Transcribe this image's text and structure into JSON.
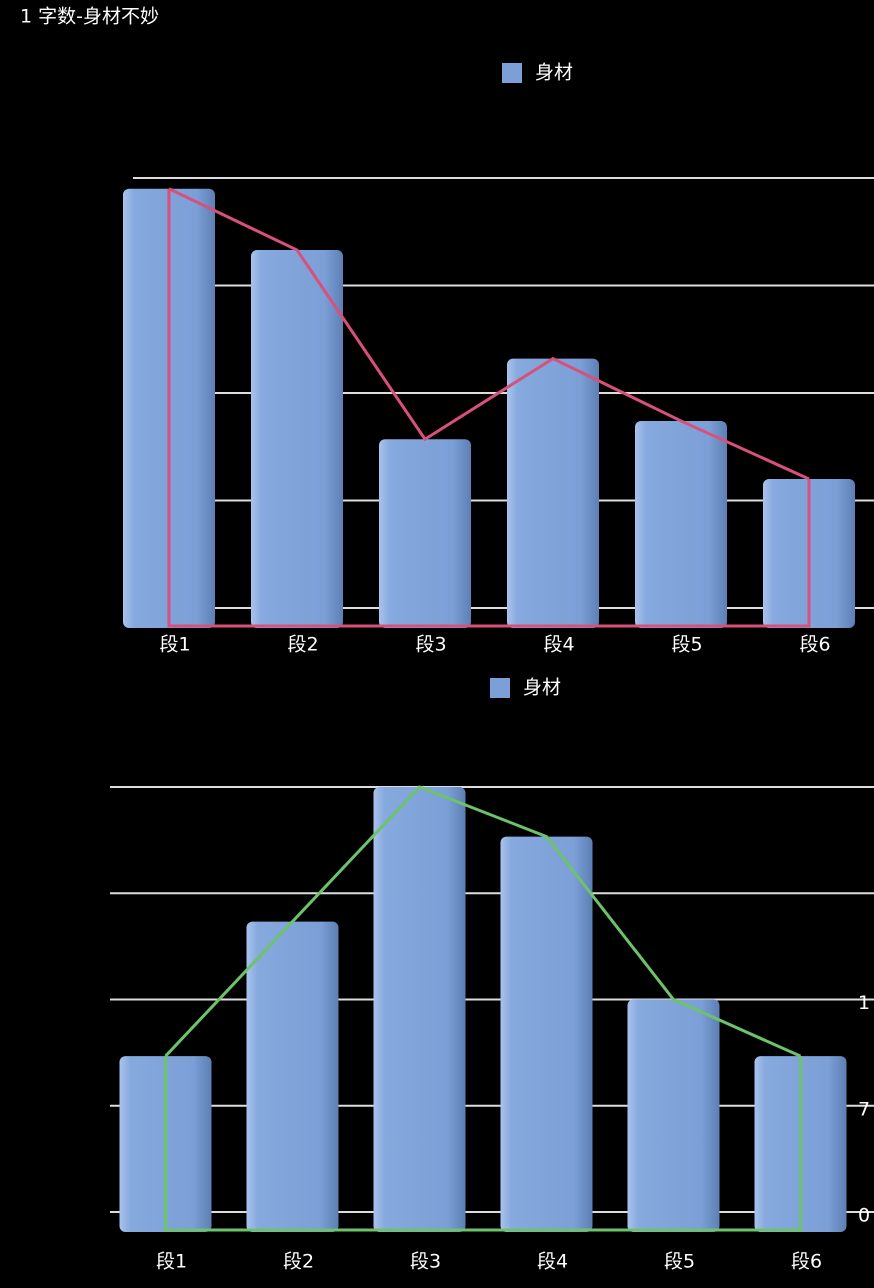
{
  "title": "1 字数-身材不妙",
  "chart_data": [
    {
      "type": "bar",
      "categories": [
        "段1",
        "段2",
        "段3",
        "段4",
        "段5",
        "段6"
      ],
      "series": [
        {
          "name": "身材",
          "color": "#7b9fd6",
          "values": [
            3.9,
            3.33,
            1.57,
            2.32,
            1.74,
            1.2
          ]
        }
      ],
      "ylim": [
        0,
        4
      ],
      "yticks": [
        {
          "value": 0,
          "label": null
        },
        {
          "value": 1,
          "label": null
        },
        {
          "value": 2,
          "label": null
        },
        {
          "value": 3,
          "label": null
        },
        {
          "value": 4,
          "label": null
        }
      ],
      "grid": true,
      "overlay_color": "#d9507a"
    },
    {
      "type": "bar",
      "categories": [
        "段1",
        "段2",
        "段3",
        "段4",
        "段5",
        "段6"
      ],
      "series": [
        {
          "name": "身材",
          "color": "#7b9fd6",
          "values": [
            1100,
            2050,
            3000,
            2650,
            1500,
            1100
          ]
        }
      ],
      "ylim": [
        0,
        3000
      ],
      "yticks": [
        0,
        {
          "value": 750,
          "label": "7"
        },
        {
          "value": 1500,
          "label": "1"
        },
        {
          "value": 2250,
          "label": null
        },
        {
          "value": 3000,
          "label": null
        }
      ],
      "grid": true,
      "overlay_color": "#6cc36a"
    }
  ]
}
